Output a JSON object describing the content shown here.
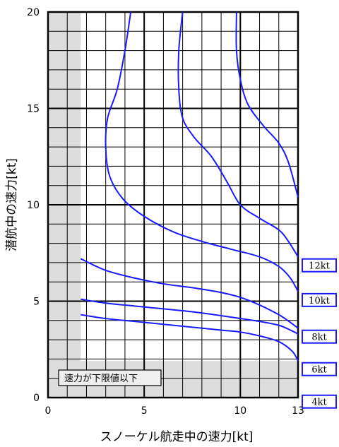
{
  "colors": {
    "curve": "#1a1aff",
    "shade": "#dddddd",
    "grid": "#000000",
    "label_border": "#1a1aff"
  },
  "chart_data": {
    "type": "line",
    "xlabel": "スノーケル航走中の速力[kt]",
    "ylabel": "潜航中の速力[kt]",
    "xlim": [
      0,
      13
    ],
    "ylim": [
      0,
      20
    ],
    "x_ticks": [
      0,
      5,
      10,
      13
    ],
    "y_ticks": [
      0,
      5,
      10,
      15,
      20
    ],
    "grid": true,
    "shaded_note": "速力が下限値以下",
    "shaded_region": {
      "x_below": 1.7,
      "y_below": 1.9
    },
    "series": [
      {
        "name": "4kt",
        "points": [
          [
            1.7,
            4.3
          ],
          [
            3,
            4.1
          ],
          [
            4.5,
            3.95
          ],
          [
            6,
            3.8
          ],
          [
            7.5,
            3.65
          ],
          [
            9,
            3.5
          ],
          [
            10,
            3.4
          ],
          [
            11,
            3.2
          ],
          [
            12,
            2.9
          ],
          [
            12.7,
            2.4
          ],
          [
            13,
            1.9
          ]
        ]
      },
      {
        "name": "6kt",
        "points": [
          [
            1.7,
            5.1
          ],
          [
            3,
            4.9
          ],
          [
            4.5,
            4.75
          ],
          [
            6,
            4.6
          ],
          [
            7.5,
            4.45
          ],
          [
            9,
            4.25
          ],
          [
            10,
            4.1
          ],
          [
            11,
            3.95
          ],
          [
            12,
            3.75
          ],
          [
            12.6,
            3.5
          ],
          [
            13,
            3.3
          ]
        ]
      },
      {
        "name": "8kt",
        "points": [
          [
            1.7,
            7.2
          ],
          [
            3,
            6.6
          ],
          [
            4.5,
            6.2
          ],
          [
            6,
            5.9
          ],
          [
            7.5,
            5.7
          ],
          [
            9,
            5.45
          ],
          [
            10,
            5.2
          ],
          [
            11,
            4.8
          ],
          [
            12,
            4.3
          ],
          [
            12.6,
            3.9
          ],
          [
            13,
            3.6
          ]
        ]
      },
      {
        "name": "10kt",
        "points": [
          [
            4.3,
            20
          ],
          [
            4,
            18
          ],
          [
            3.6,
            16
          ],
          [
            3.1,
            14.5
          ],
          [
            3.0,
            13
          ],
          [
            3.2,
            11.5
          ],
          [
            3.9,
            10.3
          ],
          [
            5,
            9.4
          ],
          [
            6.5,
            8.6
          ],
          [
            8,
            8.1
          ],
          [
            9.5,
            7.7
          ],
          [
            11,
            7.3
          ],
          [
            12,
            6.8
          ],
          [
            12.6,
            6.2
          ],
          [
            13,
            5.5
          ]
        ]
      },
      {
        "name": "12kt",
        "points": [
          [
            7.0,
            20
          ],
          [
            6.8,
            18
          ],
          [
            6.8,
            16
          ],
          [
            7.0,
            14.5
          ],
          [
            7.6,
            13.5
          ],
          [
            8.5,
            12.5
          ],
          [
            9.3,
            11.2
          ],
          [
            10,
            10
          ],
          [
            11,
            9.3
          ],
          [
            12,
            8.7
          ],
          [
            12.5,
            8.1
          ],
          [
            13,
            7.3
          ]
        ]
      },
      {
        "name": "",
        "points": [
          [
            9.8,
            20
          ],
          [
            9.8,
            18
          ],
          [
            10.0,
            16.5
          ],
          [
            10.4,
            15.2
          ],
          [
            11.2,
            14.1
          ],
          [
            12,
            13.2
          ],
          [
            12.5,
            12.2
          ],
          [
            13,
            10.4
          ]
        ]
      }
    ],
    "series_labels": [
      "12kt",
      "10kt",
      "8kt",
      "6kt",
      "4kt"
    ]
  }
}
